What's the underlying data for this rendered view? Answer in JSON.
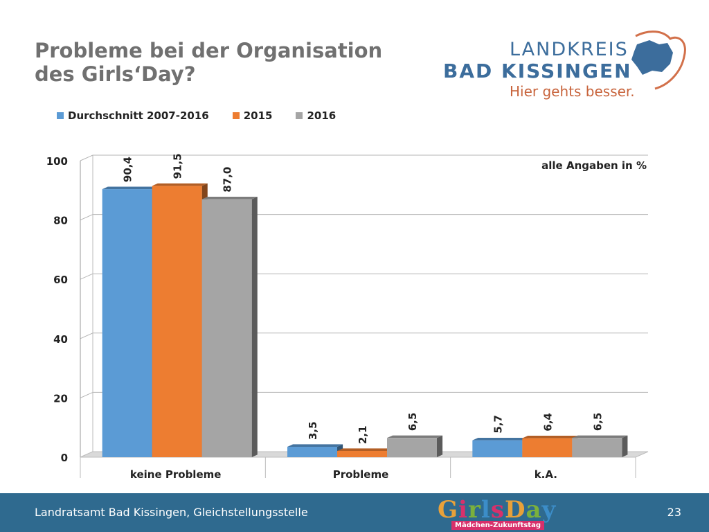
{
  "title": {
    "line1": "Probleme bei der Organisation",
    "line2": "des Girls‘Day?"
  },
  "logo": {
    "line1": "LANDKREIS",
    "line2": "BAD KISSINGEN",
    "slogan": "Hier gehts besser."
  },
  "legend": [
    {
      "label": "Durchschnitt 2007-2016",
      "color": "#5b9bd5"
    },
    {
      "label": "2015",
      "color": "#ed7d31"
    },
    {
      "label": "2016",
      "color": "#a5a5a5"
    }
  ],
  "chart_data": {
    "type": "bar",
    "title": "",
    "annotation": "alle Angaben in %",
    "categories": [
      "keine Probleme",
      "Probleme",
      "k.A."
    ],
    "series": [
      {
        "name": "Durchschnitt 2007-2016",
        "values": [
          90.4,
          3.5,
          5.7
        ],
        "labels": [
          "90,4",
          "3,5",
          "5,7"
        ],
        "color": "#5b9bd5"
      },
      {
        "name": "2015",
        "values": [
          91.5,
          2.1,
          6.4
        ],
        "labels": [
          "91,5",
          "2,1",
          "6,4"
        ],
        "color": "#ed7d31"
      },
      {
        "name": "2016",
        "values": [
          87.0,
          6.5,
          6.5
        ],
        "labels": [
          "87,0",
          "6,5",
          "6,5"
        ],
        "color": "#a5a5a5"
      }
    ],
    "ylim": [
      0,
      100
    ],
    "yticks": [
      0,
      20,
      40,
      60,
      80,
      100
    ],
    "grid": true,
    "legend_position": "top"
  },
  "footer": {
    "text": "Landratsamt Bad Kissingen, Gleichstellungsstelle",
    "page": "23",
    "girlsday_word": "GirlsDay",
    "girlsday_tag": "Mädchen-Zukunftstag"
  }
}
